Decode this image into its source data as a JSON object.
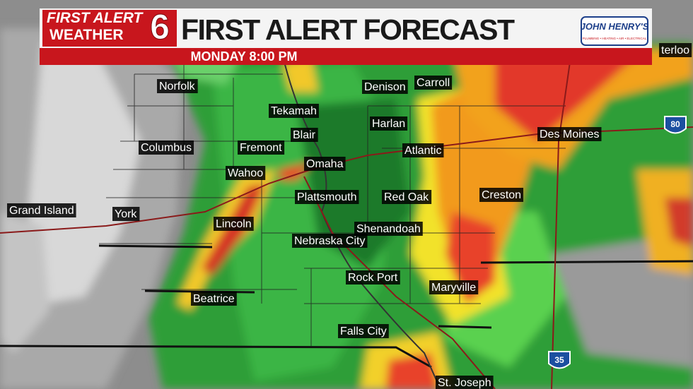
{
  "header": {
    "logo_line1": "FIRST ALERT",
    "logo_line2": "WEATHER",
    "logo_number": "6",
    "title": "FIRST ALERT FORECAST",
    "subtitle": "MONDAY 8:00 PM",
    "sponsor": "JOHN HENRY'S",
    "sponsor_tagline": "PLUMBING • HEATING • AIR • ELECTRICAL"
  },
  "cities": [
    "Norfolk",
    "Denison",
    "Carroll",
    "Tekamah",
    "Harlan",
    "Blair",
    "Des Moines",
    "Columbus",
    "Fremont",
    "Atlantic",
    "Omaha",
    "Wahoo",
    "Plattsmouth",
    "Red Oak",
    "Creston",
    "Grand Island",
    "York",
    "Lincoln",
    "Shenandoah",
    "Nebraska City",
    "Rock Port",
    "Maryville",
    "Beatrice",
    "Falls City",
    "St. Joseph",
    "terloo"
  ],
  "highways": [
    "80",
    "35"
  ]
}
